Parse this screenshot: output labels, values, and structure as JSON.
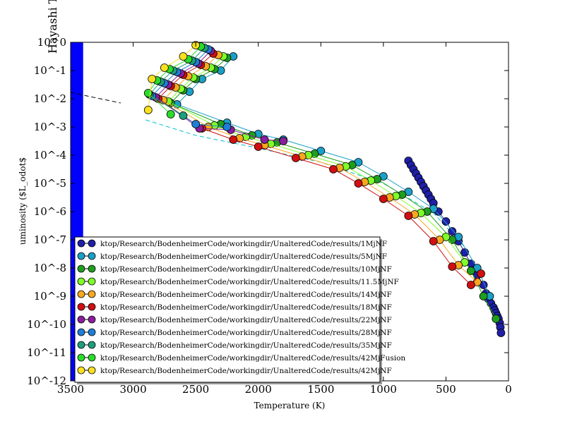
{
  "chart_data": {
    "type": "scatter",
    "title": "Hayashi Tr",
    "xlabel": "Temperature (K)",
    "ylabel": "uminosity ($L_odot$",
    "xlim": [
      3500,
      0
    ],
    "ylim_log10": [
      -12,
      0
    ],
    "y_scale": "log",
    "grid": false,
    "legend_placement": "lower-left",
    "x_ticks": [
      {
        "value": 3500,
        "label": "3500"
      },
      {
        "value": 3000,
        "label": "3000"
      },
      {
        "value": 2500,
        "label": "2500"
      },
      {
        "value": 2000,
        "label": "2000"
      },
      {
        "value": 1500,
        "label": "1500"
      },
      {
        "value": 1000,
        "label": "1000"
      },
      {
        "value": 500,
        "label": "500"
      },
      {
        "value": 0,
        "label": "0"
      }
    ],
    "y_ticks": [
      {
        "value": 0,
        "label": "10^0"
      },
      {
        "value": -1,
        "label": "10^-1"
      },
      {
        "value": -2,
        "label": "10^-2"
      },
      {
        "value": -3,
        "label": "10^-3"
      },
      {
        "value": -4,
        "label": "10^-4"
      },
      {
        "value": -5,
        "label": "10^-5"
      },
      {
        "value": -6,
        "label": "10^-6"
      },
      {
        "value": -7,
        "label": "10^-7"
      },
      {
        "value": -8,
        "label": "10^-8"
      },
      {
        "value": -9,
        "label": "10^-9"
      },
      {
        "value": -10,
        "label": "10^-10"
      },
      {
        "value": -11,
        "label": "10^-11"
      },
      {
        "value": -12,
        "label": "10^-12"
      }
    ],
    "reference_lines": [
      {
        "style": "dashed",
        "color": "#000000",
        "x": [
          3500,
          3100
        ],
        "y_log10": [
          -1.78,
          -2.15
        ]
      },
      {
        "style": "dashed",
        "color": "#00BFCF",
        "x": [
          2900,
          2500,
          2000,
          1500,
          1000,
          600,
          300
        ],
        "y_log10": [
          -2.75,
          -3.3,
          -3.75,
          -4.25,
          -5.0,
          -6.05,
          -7.5
        ]
      }
    ],
    "band": {
      "color": "#0000FF",
      "x_range": [
        3500,
        3400
      ]
    },
    "series": [
      {
        "name": "ktop/Research/BodenheimerCode/workingdir/UnalteredCode/results/1MjNF",
        "color": "#1F1FA8",
        "x": [
          800,
          780,
          760,
          740,
          720,
          700,
          680,
          660,
          640,
          620,
          600,
          560,
          500,
          450,
          400,
          350,
          300,
          250,
          200,
          180,
          160,
          140,
          120,
          110,
          100,
          90,
          80,
          70,
          65,
          60
        ],
        "y_log10": [
          -4.2,
          -4.35,
          -4.5,
          -4.65,
          -4.8,
          -4.95,
          -5.1,
          -5.25,
          -5.4,
          -5.55,
          -5.7,
          -6.0,
          -6.35,
          -6.7,
          -7.05,
          -7.45,
          -7.85,
          -8.25,
          -8.6,
          -8.9,
          -9.1,
          -9.25,
          -9.4,
          -9.5,
          -9.6,
          -9.7,
          -9.8,
          -9.95,
          -10.1,
          -10.3
        ]
      },
      {
        "name": "ktop/Research/BodenheimerCode/workingdir/UnalteredCode/results/5MjNF",
        "color": "#1AA0C8",
        "x": [
          2200,
          2300,
          2450,
          2550,
          2650,
          2250,
          2000,
          1800,
          1500,
          1200,
          1000,
          800,
          600,
          400,
          250,
          150
        ],
        "y_log10": [
          -0.5,
          -1.0,
          -1.3,
          -1.75,
          -2.2,
          -2.85,
          -3.25,
          -3.45,
          -3.85,
          -4.25,
          -4.75,
          -5.3,
          -5.9,
          -6.9,
          -8.0,
          -9.0
        ]
      },
      {
        "name": "ktop/Research/BodenheimerCode/workingdir/UnalteredCode/results/10MjNF",
        "color": "#1E9E1E",
        "x": [
          2250,
          2350,
          2500,
          2600,
          2700,
          2300,
          2050,
          1850,
          1550,
          1250,
          1050,
          850,
          650,
          450,
          300,
          200,
          100
        ],
        "y_log10": [
          -0.55,
          -0.95,
          -1.3,
          -1.7,
          -2.15,
          -2.9,
          -3.3,
          -3.55,
          -3.95,
          -4.35,
          -4.85,
          -5.4,
          -6.0,
          -7.0,
          -8.1,
          -9.0,
          -9.8
        ]
      },
      {
        "name": "ktop/Research/BodenheimerCode/workingdir/UnalteredCode/results/11.5MjNF",
        "color": "#7FFF2A",
        "x": [
          2280,
          2380,
          2520,
          2620,
          2720,
          2350,
          2100,
          1900,
          1600,
          1300,
          1100,
          900,
          700,
          500,
          350
        ],
        "y_log10": [
          -0.5,
          -0.9,
          -1.25,
          -1.65,
          -2.1,
          -2.95,
          -3.35,
          -3.6,
          -4.0,
          -4.4,
          -4.9,
          -5.45,
          -6.05,
          -6.9,
          -7.8
        ]
      },
      {
        "name": "ktop/Research/BodenheimerCode/workingdir/UnalteredCode/results/14MjNF",
        "color": "#F8A820",
        "x": [
          2320,
          2420,
          2560,
          2660,
          2760,
          2400,
          2150,
          1950,
          1650,
          1350,
          1150,
          950,
          750,
          550,
          400,
          250
        ],
        "y_log10": [
          -0.45,
          -0.85,
          -1.2,
          -1.6,
          -2.05,
          -3.0,
          -3.4,
          -3.65,
          -4.05,
          -4.45,
          -4.95,
          -5.5,
          -6.1,
          -7.0,
          -7.9,
          -8.5
        ]
      },
      {
        "name": "ktop/Research/BodenheimerCode/workingdir/UnalteredCode/results/18MjNF",
        "color": "#D01010",
        "x": [
          2360,
          2460,
          2600,
          2700,
          2800,
          2450,
          2200,
          2000,
          1700,
          1400,
          1200,
          1000,
          800,
          600,
          450,
          300,
          220
        ],
        "y_log10": [
          -0.4,
          -0.8,
          -1.15,
          -1.55,
          -2.0,
          -3.05,
          -3.45,
          -3.7,
          -4.1,
          -4.5,
          -5.0,
          -5.55,
          -6.15,
          -7.05,
          -7.95,
          -8.6,
          -8.2
        ]
      },
      {
        "name": "ktop/Research/BodenheimerCode/workingdir/UnalteredCode/results/22MjNF",
        "color": "#8A1E9E",
        "x": [
          2380,
          2480,
          2620,
          2720,
          2820,
          2470,
          2220,
          1950,
          1800
        ],
        "y_log10": [
          -0.3,
          -0.75,
          -1.1,
          -1.5,
          -1.95,
          -3.05,
          -3.1,
          -3.45,
          -3.5
        ]
      },
      {
        "name": "ktop/Research/BodenheimerCode/workingdir/UnalteredCode/results/28MjNF",
        "color": "#1E7ED8",
        "x": [
          2400,
          2500,
          2650,
          2750,
          2850,
          2500,
          2250
        ],
        "y_log10": [
          -0.25,
          -0.7,
          -1.05,
          -1.45,
          -1.9,
          -2.9,
          -3.0
        ]
      },
      {
        "name": "ktop/Research/BodenheimerCode/workingdir/UnalteredCode/results/35MjNF",
        "color": "#1E9E7E",
        "x": [
          2430,
          2530,
          2680,
          2780,
          2870,
          2600
        ],
        "y_log10": [
          -0.2,
          -0.65,
          -1.0,
          -1.4,
          -1.85,
          -2.6
        ]
      },
      {
        "name": "ktop/Research/BodenheimerCode/workingdir/UnalteredCode/results/42MjFusion",
        "color": "#2ADC2A",
        "x": [
          2460,
          2560,
          2710,
          2810,
          2880,
          2700
        ],
        "y_log10": [
          -0.15,
          -0.6,
          -0.95,
          -1.35,
          -1.8,
          -2.55
        ]
      },
      {
        "name": "ktop/Research/BodenheimerCode/workingdir/UnalteredCode/results/42MjNF",
        "color": "#F8E020",
        "x": [
          2500,
          2600,
          2750,
          2850,
          2880
        ],
        "y_log10": [
          -0.1,
          -0.5,
          -0.9,
          -1.3,
          -2.4
        ]
      }
    ]
  }
}
